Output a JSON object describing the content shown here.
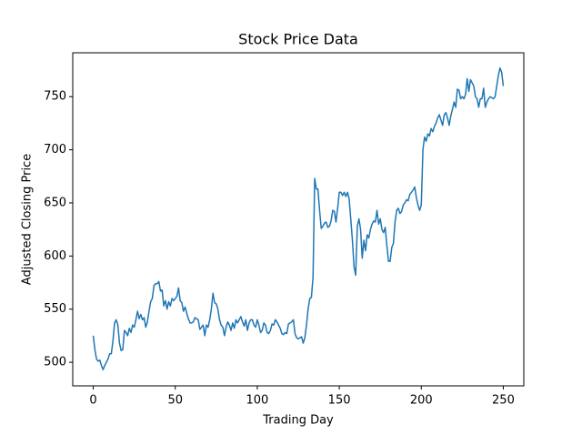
{
  "chart_data": {
    "type": "line",
    "title": "Stock Price Data",
    "x_label": "Trading Day",
    "y_label": "Adjusted Closing Price",
    "x": [
      0,
      1,
      2,
      3,
      4,
      5,
      6,
      7,
      8,
      9,
      10,
      11,
      12,
      13,
      14,
      15,
      16,
      17,
      18,
      19,
      20,
      21,
      22,
      23,
      24,
      25,
      26,
      27,
      28,
      29,
      30,
      31,
      32,
      33,
      34,
      35,
      36,
      37,
      38,
      39,
      40,
      41,
      42,
      43,
      44,
      45,
      46,
      47,
      48,
      49,
      50,
      51,
      52,
      53,
      54,
      55,
      56,
      57,
      58,
      59,
      60,
      61,
      62,
      63,
      64,
      65,
      66,
      67,
      68,
      69,
      70,
      71,
      72,
      73,
      74,
      75,
      76,
      77,
      78,
      79,
      80,
      81,
      82,
      83,
      84,
      85,
      86,
      87,
      88,
      89,
      90,
      91,
      92,
      93,
      94,
      95,
      96,
      97,
      98,
      99,
      100,
      101,
      102,
      103,
      104,
      105,
      106,
      107,
      108,
      109,
      110,
      111,
      112,
      113,
      114,
      115,
      116,
      117,
      118,
      119,
      120,
      121,
      122,
      123,
      124,
      125,
      126,
      127,
      128,
      129,
      130,
      131,
      132,
      133,
      134,
      135,
      136,
      137,
      138,
      139,
      140,
      141,
      142,
      143,
      144,
      145,
      146,
      147,
      148,
      149,
      150,
      151,
      152,
      153,
      154,
      155,
      156,
      157,
      158,
      159,
      160,
      161,
      162,
      163,
      164,
      165,
      166,
      167,
      168,
      169,
      170,
      171,
      172,
      173,
      174,
      175,
      176,
      177,
      178,
      179,
      180,
      181,
      182,
      183,
      184,
      185,
      186,
      187,
      188,
      189,
      190,
      191,
      192,
      193,
      194,
      195,
      196,
      197,
      198,
      199,
      200,
      201,
      202,
      203,
      204,
      205,
      206,
      207,
      208,
      209,
      210,
      211,
      212,
      213,
      214,
      215,
      216,
      217,
      218,
      219,
      220,
      221,
      222,
      223,
      224,
      225,
      226,
      227,
      228,
      229,
      230,
      231,
      232,
      233,
      234,
      235,
      236,
      237,
      238,
      239,
      240,
      241,
      242,
      243,
      244,
      245,
      246,
      247,
      248,
      249,
      250
    ],
    "series": [
      {
        "name": "Adjusted Closing Price",
        "color": "#1f77b4",
        "values": [
          525,
          512,
          503,
          501,
          502,
          497,
          493,
          497,
          500,
          503,
          508,
          508,
          520,
          537,
          540,
          535,
          518,
          511,
          512,
          530,
          528,
          525,
          532,
          528,
          535,
          533,
          540,
          548,
          541,
          545,
          540,
          542,
          533,
          538,
          548,
          557,
          560,
          572,
          574,
          574,
          576,
          567,
          568,
          553,
          558,
          550,
          557,
          553,
          560,
          558,
          560,
          562,
          570,
          558,
          556,
          548,
          552,
          546,
          541,
          537,
          537,
          538,
          542,
          541,
          540,
          531,
          533,
          535,
          525,
          535,
          533,
          540,
          550,
          565,
          556,
          555,
          550,
          540,
          535,
          533,
          525,
          533,
          538,
          535,
          530,
          537,
          532,
          540,
          537,
          540,
          543,
          538,
          534,
          540,
          530,
          537,
          540,
          540,
          535,
          533,
          540,
          535,
          528,
          530,
          537,
          535,
          528,
          527,
          530,
          536,
          535,
          540,
          538,
          535,
          532,
          527,
          526,
          528,
          527,
          536,
          537,
          538,
          540,
          527,
          523,
          522,
          523,
          524,
          518,
          523,
          535,
          550,
          560,
          561,
          580,
          673,
          663,
          663,
          643,
          626,
          628,
          631,
          632,
          627,
          628,
          633,
          643,
          642,
          632,
          645,
          660,
          660,
          657,
          660,
          656,
          660,
          654,
          635,
          615,
          590,
          582,
          628,
          635,
          625,
          598,
          615,
          605,
          620,
          617,
          625,
          630,
          633,
          632,
          643,
          630,
          635,
          625,
          622,
          627,
          610,
          595,
          595,
          608,
          612,
          632,
          643,
          645,
          640,
          642,
          648,
          650,
          653,
          652,
          658,
          660,
          662,
          665,
          655,
          648,
          643,
          648,
          700,
          712,
          708,
          715,
          713,
          720,
          717,
          722,
          725,
          730,
          733,
          728,
          723,
          733,
          735,
          730,
          723,
          732,
          738,
          745,
          740,
          757,
          756,
          748,
          750,
          748,
          752,
          767,
          755,
          766,
          763,
          760,
          750,
          748,
          740,
          748,
          748,
          758,
          740,
          745,
          748,
          750,
          749,
          748,
          750,
          760,
          770,
          777,
          773,
          760
        ]
      }
    ],
    "xlim": [
      -12.5,
      262.5
    ],
    "ylim": [
      477.8,
      791.3
    ],
    "xticks": [
      0,
      50,
      100,
      150,
      200,
      250
    ],
    "yticks": [
      500,
      550,
      600,
      650,
      700,
      750
    ],
    "grid": false
  }
}
